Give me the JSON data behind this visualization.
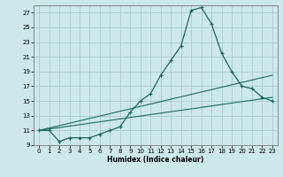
{
  "xlabel": "Humidex (Indice chaleur)",
  "bg_color": "#cce8e8",
  "grid_color": "#aacccc",
  "line_color": "#1a6b5a",
  "xlim": [
    -0.5,
    23.5
  ],
  "ylim": [
    9,
    28
  ],
  "yticks": [
    9,
    11,
    13,
    15,
    17,
    19,
    21,
    23,
    25,
    27
  ],
  "xticks": [
    0,
    1,
    2,
    3,
    4,
    5,
    6,
    7,
    8,
    9,
    10,
    11,
    12,
    13,
    14,
    15,
    16,
    17,
    18,
    19,
    20,
    21,
    22,
    23
  ],
  "curve_x": [
    0,
    1,
    2,
    3,
    4,
    5,
    6,
    7,
    8,
    9,
    10,
    11,
    12,
    13,
    14,
    15,
    16,
    17,
    18,
    19,
    20,
    21,
    22,
    23
  ],
  "curve_y": [
    11,
    11,
    9.5,
    10,
    10,
    10,
    10.5,
    11,
    11.5,
    13.5,
    15,
    16,
    18.5,
    20.5,
    22.5,
    27.3,
    27.7,
    25.5,
    21.5,
    19,
    17,
    16.7,
    15.5,
    15
  ],
  "line1_x": [
    0,
    23
  ],
  "line1_y": [
    11,
    18.5
  ],
  "line2_x": [
    0,
    23
  ],
  "line2_y": [
    11,
    15.5
  ]
}
